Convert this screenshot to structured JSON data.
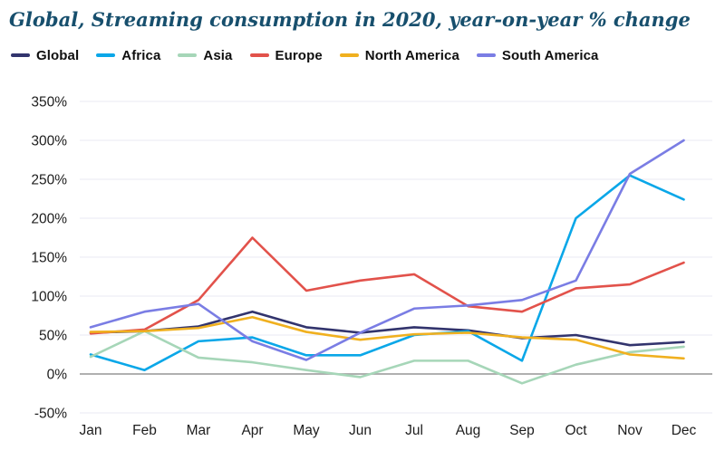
{
  "page": {
    "title": "Global, Streaming consumption in 2020, year-on-year % change"
  },
  "chart_data": {
    "type": "line",
    "title": "Global, Streaming consumption in 2020, year-on-year % change",
    "x": [
      "Jan",
      "Feb",
      "Mar",
      "Apr",
      "May",
      "Jun",
      "Jul",
      "Aug",
      "Sep",
      "Oct",
      "Nov",
      "Dec"
    ],
    "series": [
      {
        "name": "Global",
        "color": "#32346d",
        "values": [
          53,
          55,
          61,
          80,
          60,
          53,
          60,
          56,
          46,
          50,
          37,
          41
        ]
      },
      {
        "name": "Africa",
        "color": "#0aa7e8",
        "values": [
          25,
          5,
          42,
          47,
          24,
          24,
          50,
          55,
          17,
          200,
          255,
          224
        ]
      },
      {
        "name": "Asia",
        "color": "#a6d6b8",
        "values": [
          22,
          55,
          21,
          15,
          5,
          -4,
          17,
          17,
          -12,
          12,
          28,
          35
        ]
      },
      {
        "name": "Europe",
        "color": "#e2524b",
        "values": [
          52,
          57,
          95,
          175,
          107,
          120,
          128,
          87,
          80,
          110,
          115,
          143
        ]
      },
      {
        "name": "North America",
        "color": "#f0b01f",
        "values": [
          54,
          55,
          59,
          73,
          54,
          44,
          51,
          53,
          47,
          44,
          25,
          20
        ]
      },
      {
        "name": "South America",
        "color": "#7a7de4",
        "values": [
          60,
          80,
          90,
          42,
          18,
          53,
          84,
          88,
          95,
          120,
          257,
          300
        ]
      }
    ],
    "ylim": [
      -50,
      350
    ],
    "yticks": [
      {
        "label": "350%",
        "value": 350
      },
      {
        "label": "300%",
        "value": 300
      },
      {
        "label": "250%",
        "value": 250
      },
      {
        "label": "200%",
        "value": 200
      },
      {
        "label": "150%",
        "value": 150
      },
      {
        "label": "100%",
        "value": 100
      },
      {
        "label": "50%",
        "value": 50
      },
      {
        "label": "0%",
        "value": 0
      },
      {
        "label": "-50%",
        "value": -50
      }
    ],
    "xlabel": "",
    "ylabel": "",
    "grid": true,
    "legend_position": "top",
    "grid_color": "#eae9f3",
    "zero_line_color": "#a5a5a5",
    "title_color": "#174f6d"
  }
}
